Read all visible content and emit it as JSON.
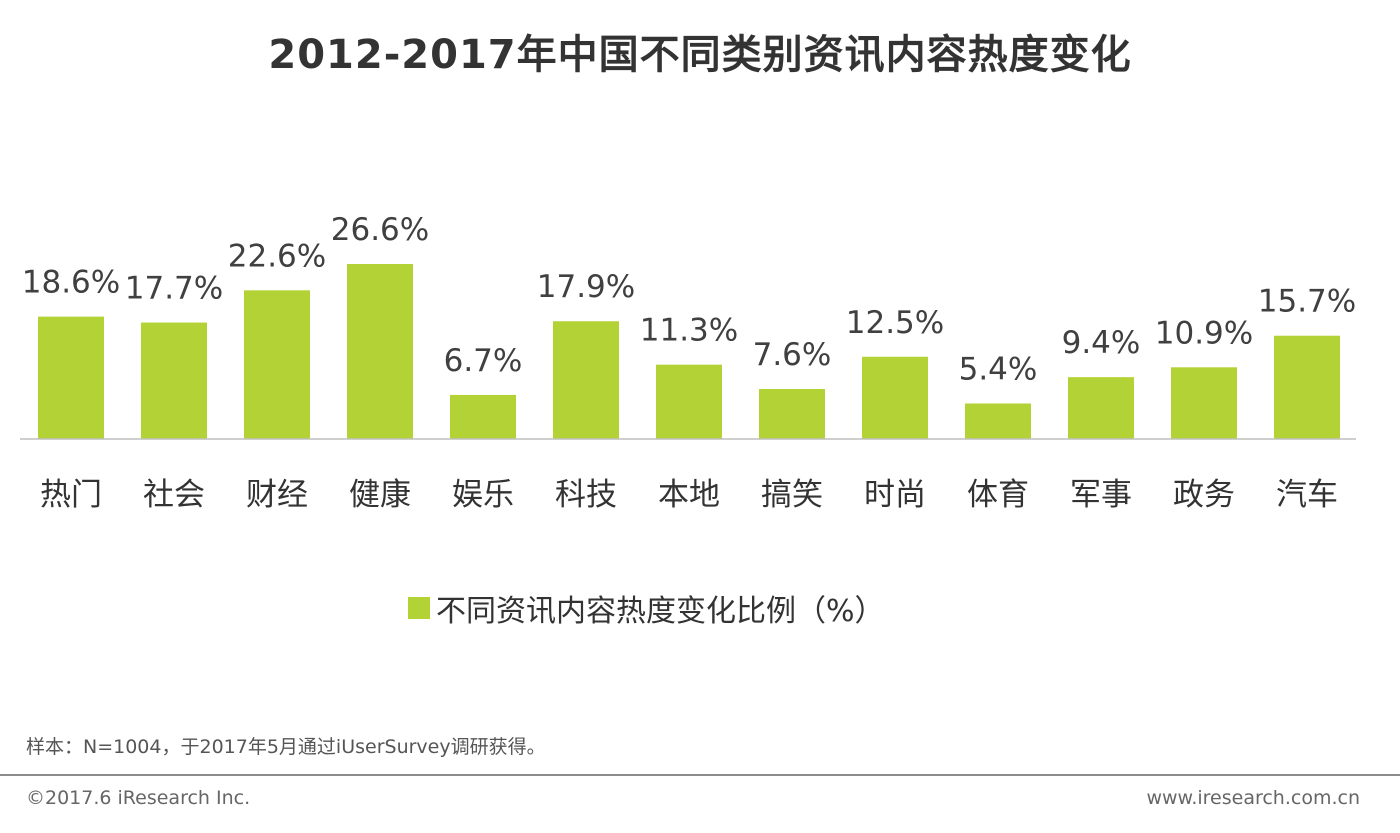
{
  "title": "2012-2017年中国不同类别资讯内容热度变化",
  "chart_data": {
    "type": "bar",
    "title": "2012-2017年中国不同类别资讯内容热度变化",
    "categories": [
      "热门",
      "社会",
      "财经",
      "健康",
      "娱乐",
      "科技",
      "本地",
      "搞笑",
      "时尚",
      "体育",
      "军事",
      "政务",
      "汽车"
    ],
    "values": [
      18.6,
      17.7,
      22.6,
      26.6,
      6.7,
      17.9,
      11.3,
      7.6,
      12.5,
      5.4,
      9.4,
      10.9,
      15.7
    ],
    "value_labels": [
      "18.6%",
      "17.7%",
      "22.6%",
      "26.6%",
      "6.7%",
      "17.9%",
      "11.3%",
      "7.6%",
      "12.5%",
      "5.4%",
      "9.4%",
      "10.9%",
      "15.7%"
    ],
    "series_name": "不同资讯内容热度变化比例（%）",
    "ylim": [
      0,
      30
    ],
    "xlabel": "",
    "ylabel": "",
    "grid": false,
    "legend_position": "bottom",
    "bar_color": "#b3d236"
  },
  "legend": {
    "label": "不同资讯内容热度变化比例（%）"
  },
  "sample_note": "样本：N=1004，于2017年5月通过iUserSurvey调研获得。",
  "footer": {
    "copyright": "©2017.6 iResearch Inc.",
    "website": "www.iresearch.com.cn"
  }
}
